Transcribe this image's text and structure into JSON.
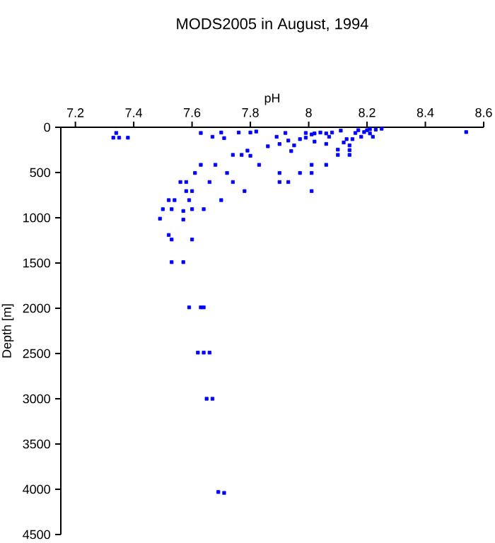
{
  "chart_data": {
    "type": "scatter",
    "title": "MODS2005 in August, 1994",
    "xlabel": "pH",
    "ylabel": "Depth [m]",
    "xlim": [
      7.15,
      8.6
    ],
    "xticks": [
      7.2,
      7.4,
      7.6,
      7.8,
      8,
      8.2,
      8.4,
      8.6
    ],
    "ylim": [
      4500,
      0
    ],
    "yticks": [
      0,
      500,
      1000,
      1500,
      2000,
      2500,
      3000,
      3500,
      4000,
      4500
    ],
    "grid": false,
    "marker": "square",
    "series": [
      {
        "color": "#0000ff",
        "x": [
          7.33,
          7.34,
          7.35,
          7.38,
          7.63,
          7.67,
          7.7,
          7.71,
          7.76,
          7.8,
          7.82,
          7.89,
          7.92,
          7.93,
          7.9,
          7.86,
          7.94,
          7.95,
          7.97,
          7.99,
          7.99,
          8.01,
          8.02,
          8.02,
          8.04,
          8.06,
          8.06,
          8.07,
          8.08,
          8.1,
          8.1,
          8.11,
          8.12,
          8.13,
          8.14,
          8.14,
          8.14,
          8.15,
          8.16,
          8.17,
          8.18,
          8.19,
          8.2,
          8.21,
          8.21,
          8.23,
          8.22,
          8.25,
          8.54,
          7.74,
          7.77,
          7.79,
          7.8,
          7.83,
          7.63,
          7.68,
          7.61,
          7.72,
          7.9,
          7.97,
          8.01,
          8.01,
          8.06,
          7.9,
          7.93,
          8.01,
          7.56,
          7.58,
          7.6,
          7.58,
          7.66,
          7.74,
          7.78,
          7.7,
          7.52,
          7.54,
          7.59,
          7.5,
          7.53,
          7.6,
          7.64,
          7.57,
          7.49,
          7.57,
          7.52,
          7.53,
          7.6,
          7.53,
          7.57,
          7.59,
          7.63,
          7.64,
          7.62,
          7.64,
          7.66,
          7.65,
          7.67,
          7.69,
          7.71
        ],
        "values": [
          115,
          63,
          115,
          115,
          63,
          105,
          58,
          120,
          58,
          58,
          47,
          105,
          63,
          147,
          185,
          210,
          263,
          200,
          131,
          115,
          63,
          79,
          158,
          68,
          58,
          68,
          184,
          105,
          58,
          247,
          305,
          37,
          168,
          131,
          200,
          252,
          305,
          131,
          63,
          32,
          105,
          53,
          32,
          68,
          21,
          26,
          105,
          16,
          53,
          305,
          305,
          258,
          315,
          415,
          415,
          415,
          505,
          505,
          505,
          505,
          415,
          505,
          415,
          605,
          605,
          705,
          605,
          605,
          705,
          705,
          605,
          605,
          705,
          805,
          805,
          805,
          805,
          905,
          905,
          905,
          905,
          925,
          1010,
          1020,
          1190,
          1240,
          1240,
          1490,
          1490,
          1990,
          1990,
          1990,
          2490,
          2490,
          2490,
          3000,
          3000,
          4030,
          4040
        ]
      }
    ]
  }
}
